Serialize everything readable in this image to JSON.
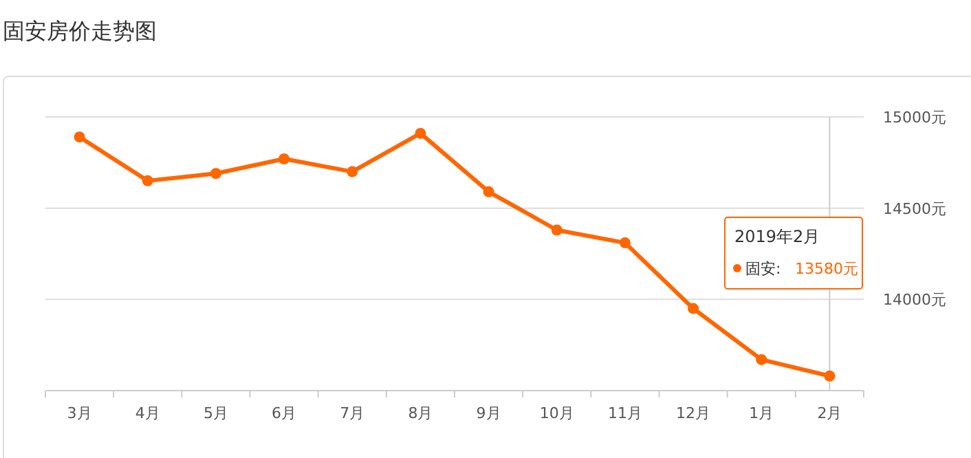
{
  "chart_data": {
    "type": "line",
    "title": "固安房价走势图",
    "categories": [
      "3月",
      "4月",
      "5月",
      "6月",
      "7月",
      "8月",
      "9月",
      "10月",
      "11月",
      "12月",
      "1月",
      "2月"
    ],
    "series": [
      {
        "color": "#ff6600",
        "values": [
          14890,
          14650,
          14690,
          14770,
          14700,
          14910,
          14590,
          14380,
          14310,
          13950,
          13670,
          13580
        ]
      }
    ],
    "ylim": [
      13500,
      15000
    ],
    "yticks": [
      {
        "value": 13500,
        "label": null
      },
      {
        "value": 14000,
        "label": "14000元"
      },
      {
        "value": 14500,
        "label": "14500元"
      },
      {
        "value": 15000,
        "label": "15000元"
      }
    ],
    "grid": "y",
    "marker": "circle",
    "line_style": "solid",
    "ref_lines": [
      {
        "axis": "x",
        "value": "2月",
        "color": "#cccccc"
      }
    ],
    "annotations": [
      "2019年2月",
      "固安:",
      "13580元"
    ]
  }
}
